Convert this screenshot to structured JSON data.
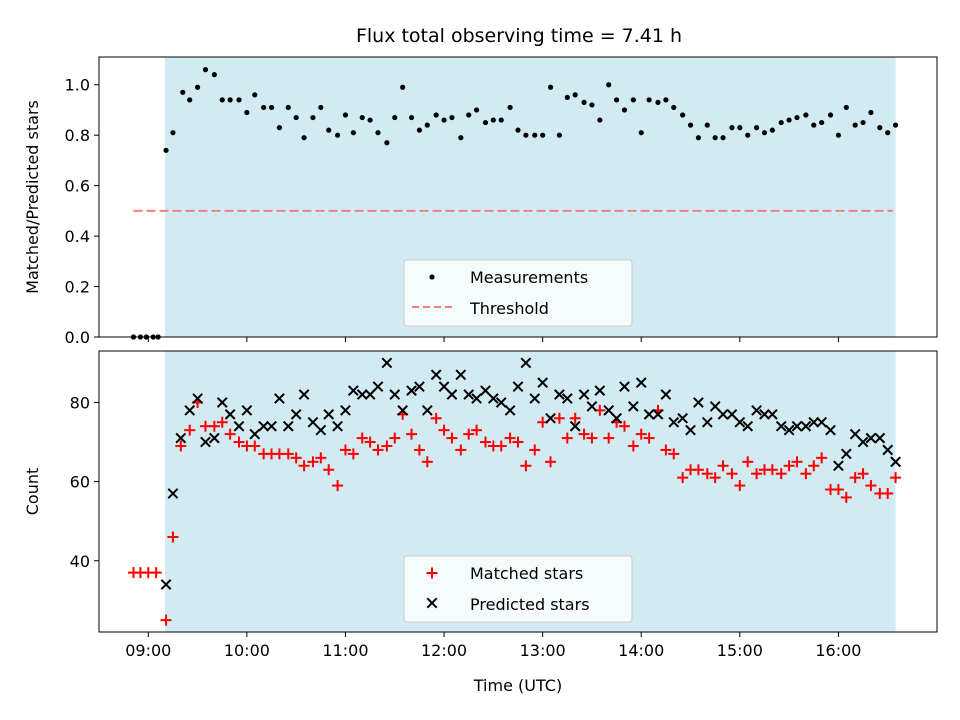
{
  "chart_data": {
    "type": "scatter",
    "title": "Flux total observing time = 7.41 h",
    "xlabel": "Time (UTC)",
    "x_unit": "hours (UTC)",
    "xlim": [
      8.5,
      17.0
    ],
    "xticks": [
      {
        "value": 9,
        "label": "09:00"
      },
      {
        "value": 10,
        "label": "10:00"
      },
      {
        "value": 11,
        "label": "11:00"
      },
      {
        "value": 12,
        "label": "12:00"
      },
      {
        "value": 13,
        "label": "13:00"
      },
      {
        "value": 14,
        "label": "14:00"
      },
      {
        "value": 15,
        "label": "15:00"
      },
      {
        "value": 16,
        "label": "16:00"
      }
    ],
    "colors": {
      "shade": "#add8e6",
      "measurement": "#000000",
      "threshold": "#f08080",
      "matched": "#ff0000",
      "predicted": "#000000"
    },
    "panels": [
      {
        "id": "top",
        "ylabel": "Matched/Predicted stars",
        "ylim": [
          0.0,
          1.11
        ],
        "yticks": [
          {
            "value": 0.0,
            "label": "0.0"
          },
          {
            "value": 0.2,
            "label": "0.2"
          },
          {
            "value": 0.4,
            "label": "0.4"
          },
          {
            "value": 0.6,
            "label": "0.6"
          },
          {
            "value": 0.8,
            "label": "0.8"
          },
          {
            "value": 1.0,
            "label": "1.0"
          }
        ],
        "shade_x": [
          9.17,
          16.58
        ],
        "threshold": {
          "name": "Threshold",
          "y": 0.5,
          "x": [
            8.85,
            16.55
          ]
        },
        "legend": {
          "position": "lower center",
          "entries": [
            {
              "label": "Measurements",
              "marker": "dot"
            },
            {
              "label": "Threshold",
              "marker": "dash"
            }
          ]
        },
        "series": [
          {
            "name": "Measurements",
            "marker": "dot",
            "x": [
              8.85,
              8.92,
              8.98,
              9.05,
              9.1,
              9.18,
              9.25,
              9.35,
              9.42,
              9.5,
              9.58,
              9.67,
              9.75,
              9.83,
              9.92,
              10.0,
              10.08,
              10.17,
              10.25,
              10.33,
              10.42,
              10.5,
              10.58,
              10.67,
              10.75,
              10.83,
              10.92,
              11.0,
              11.08,
              11.17,
              11.25,
              11.33,
              11.42,
              11.5,
              11.58,
              11.67,
              11.75,
              11.83,
              11.92,
              12.0,
              12.08,
              12.17,
              12.25,
              12.33,
              12.42,
              12.5,
              12.58,
              12.67,
              12.75,
              12.83,
              12.92,
              13.0,
              13.08,
              13.17,
              13.25,
              13.33,
              13.42,
              13.5,
              13.58,
              13.67,
              13.75,
              13.83,
              13.92,
              14.0,
              14.08,
              14.17,
              14.25,
              14.33,
              14.42,
              14.5,
              14.58,
              14.67,
              14.75,
              14.83,
              14.92,
              15.0,
              15.08,
              15.17,
              15.25,
              15.33,
              15.42,
              15.5,
              15.58,
              15.67,
              15.75,
              15.83,
              15.92,
              16.0,
              16.08,
              16.17,
              16.25,
              16.33,
              16.42,
              16.5,
              16.58
            ],
            "y": [
              0.0,
              0.0,
              0.0,
              0.0,
              0.0,
              0.74,
              0.81,
              0.97,
              0.94,
              0.99,
              1.06,
              1.04,
              0.94,
              0.94,
              0.94,
              0.89,
              0.96,
              0.91,
              0.91,
              0.83,
              0.91,
              0.87,
              0.79,
              0.87,
              0.91,
              0.82,
              0.8,
              0.88,
              0.81,
              0.87,
              0.86,
              0.81,
              0.77,
              0.87,
              0.99,
              0.87,
              0.82,
              0.84,
              0.88,
              0.86,
              0.87,
              0.79,
              0.88,
              0.9,
              0.85,
              0.86,
              0.86,
              0.91,
              0.82,
              0.8,
              0.8,
              0.8,
              0.99,
              0.8,
              0.95,
              0.96,
              0.93,
              0.92,
              0.86,
              1.0,
              0.94,
              0.9,
              0.94,
              0.81,
              0.94,
              0.93,
              0.94,
              0.91,
              0.88,
              0.84,
              0.79,
              0.84,
              0.79,
              0.79,
              0.83,
              0.83,
              0.8,
              0.83,
              0.81,
              0.82,
              0.85,
              0.86,
              0.87,
              0.88,
              0.84,
              0.85,
              0.88,
              0.8,
              0.91,
              0.84,
              0.85,
              0.89,
              0.83,
              0.81,
              0.84
            ]
          }
        ]
      },
      {
        "id": "bottom",
        "ylabel": "Count",
        "ylim": [
          22,
          93
        ],
        "yticks": [
          {
            "value": 40,
            "label": "40"
          },
          {
            "value": 60,
            "label": "60"
          },
          {
            "value": 80,
            "label": "80"
          }
        ],
        "shade_x": [
          9.17,
          16.58
        ],
        "legend": {
          "position": "lower center",
          "entries": [
            {
              "label": "Matched stars",
              "marker": "plus"
            },
            {
              "label": "Predicted stars",
              "marker": "x"
            }
          ]
        },
        "series": [
          {
            "name": "Matched stars",
            "marker": "plus",
            "x": [
              8.85,
              8.92,
              9.0,
              9.08,
              9.18,
              9.25,
              9.33,
              9.42,
              9.5,
              9.58,
              9.67,
              9.75,
              9.83,
              9.92,
              10.0,
              10.08,
              10.17,
              10.25,
              10.33,
              10.42,
              10.5,
              10.58,
              10.67,
              10.75,
              10.83,
              10.92,
              11.0,
              11.08,
              11.17,
              11.25,
              11.33,
              11.42,
              11.5,
              11.58,
              11.67,
              11.75,
              11.83,
              11.92,
              12.0,
              12.08,
              12.17,
              12.25,
              12.33,
              12.42,
              12.5,
              12.58,
              12.67,
              12.75,
              12.83,
              12.92,
              13.0,
              13.08,
              13.17,
              13.25,
              13.33,
              13.42,
              13.5,
              13.58,
              13.67,
              13.75,
              13.83,
              13.92,
              14.0,
              14.08,
              14.17,
              14.25,
              14.33,
              14.42,
              14.5,
              14.58,
              14.67,
              14.75,
              14.83,
              14.92,
              15.0,
              15.08,
              15.17,
              15.25,
              15.33,
              15.42,
              15.5,
              15.58,
              15.67,
              15.75,
              15.83,
              15.92,
              16.0,
              16.08,
              16.17,
              16.25,
              16.33,
              16.42,
              16.5,
              16.58
            ],
            "y": [
              37,
              37,
              37,
              37,
              25,
              46,
              69,
              73,
              80,
              74,
              74,
              75,
              72,
              70,
              69,
              69,
              67,
              67,
              67,
              67,
              66,
              64,
              65,
              66,
              63,
              59,
              68,
              67,
              71,
              70,
              68,
              69,
              71,
              77,
              72,
              68,
              65,
              76,
              73,
              71,
              68,
              72,
              73,
              70,
              69,
              69,
              71,
              70,
              64,
              68,
              75,
              65,
              76,
              71,
              76,
              72,
              71,
              78,
              71,
              75,
              74,
              69,
              72,
              71,
              78,
              68,
              67,
              61,
              63,
              63,
              62,
              61,
              64,
              62,
              59,
              65,
              62,
              63,
              63,
              62,
              64,
              65,
              62,
              64,
              66,
              58,
              58,
              56,
              61,
              62,
              59,
              57,
              57,
              61
            ]
          },
          {
            "name": "Predicted stars",
            "marker": "x",
            "x": [
              9.18,
              9.25,
              9.33,
              9.42,
              9.5,
              9.58,
              9.67,
              9.75,
              9.83,
              9.92,
              10.0,
              10.08,
              10.17,
              10.25,
              10.33,
              10.42,
              10.5,
              10.58,
              10.67,
              10.75,
              10.83,
              10.92,
              11.0,
              11.08,
              11.17,
              11.25,
              11.33,
              11.42,
              11.5,
              11.58,
              11.67,
              11.75,
              11.83,
              11.92,
              12.0,
              12.08,
              12.17,
              12.25,
              12.33,
              12.42,
              12.5,
              12.58,
              12.67,
              12.75,
              12.83,
              12.92,
              13.0,
              13.08,
              13.17,
              13.25,
              13.33,
              13.42,
              13.5,
              13.58,
              13.67,
              13.75,
              13.83,
              13.92,
              14.0,
              14.08,
              14.17,
              14.25,
              14.33,
              14.42,
              14.5,
              14.58,
              14.67,
              14.75,
              14.83,
              14.92,
              15.0,
              15.08,
              15.17,
              15.25,
              15.33,
              15.42,
              15.5,
              15.58,
              15.67,
              15.75,
              15.83,
              15.92,
              16.0,
              16.08,
              16.17,
              16.25,
              16.33,
              16.42,
              16.5,
              16.58
            ],
            "y": [
              34,
              57,
              71,
              78,
              81,
              70,
              71,
              80,
              77,
              74,
              78,
              72,
              74,
              74,
              81,
              74,
              77,
              82,
              75,
              73,
              77,
              74,
              78,
              83,
              82,
              82,
              84,
              90,
              82,
              78,
              83,
              84,
              78,
              87,
              84,
              82,
              87,
              82,
              81,
              83,
              81,
              80,
              78,
              84,
              90,
              81,
              85,
              76,
              82,
              81,
              74,
              82,
              79,
              83,
              78,
              76,
              84,
              79,
              85,
              77,
              77,
              82,
              75,
              76,
              73,
              80,
              75,
              79,
              77,
              77,
              75,
              74,
              78,
              77,
              77,
              74,
              73,
              74,
              74,
              75,
              75,
              73,
              64,
              67,
              72,
              70,
              71,
              71,
              68,
              65
            ]
          }
        ]
      }
    ]
  }
}
